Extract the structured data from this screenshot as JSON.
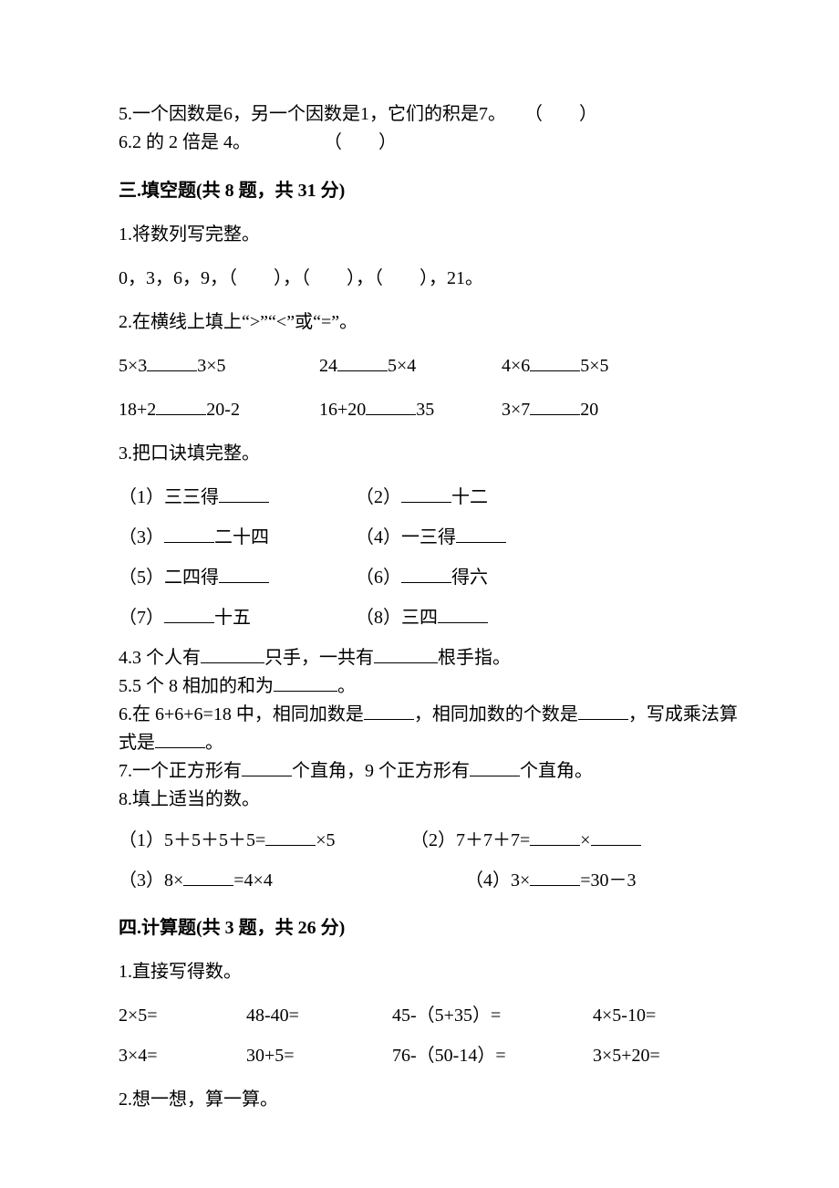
{
  "top": {
    "l5": "5.一个因数是6，另一个因数是1，它们的积是7。　　（　　）",
    "l6": "6.2 的 2 倍是 4。　　　　　（　　）"
  },
  "s3": {
    "title": "三.填空题(共 8 题，共 31 分)",
    "q1_intro": "1.将数列写完整。",
    "q1_line": "0，3，6，9，（　　），（　　），（　　），21。",
    "q2_intro": "2.在横线上填上“>”“<”或“=”。",
    "q2_r1": {
      "a_pre": "5×3",
      "a_post": "3×5",
      "b_pre": "24",
      "b_post": "5×4",
      "c_pre": "4×6",
      "c_post": "5×5"
    },
    "q2_r2": {
      "a_pre": "18+2",
      "a_post": "20-2",
      "b_pre": "16+20",
      "b_post": "35",
      "c_pre": "3×7",
      "c_post": "20"
    },
    "q3_intro": "3.把口诀填完整。",
    "q3_pairs": [
      {
        "l_pre": "（1）三三得",
        "l_post": "",
        "r_pre": "（2）",
        "r_post": "十二"
      },
      {
        "l_pre": "（3）",
        "l_post": "二十四",
        "r_pre": "（4）一三得",
        "r_post": ""
      },
      {
        "l_pre": "（5）二四得",
        "l_post": "",
        "r_pre": "（6）",
        "r_post": "得六"
      },
      {
        "l_pre": "（7）",
        "l_post": "十五",
        "r_pre": "（8）三四",
        "r_post": ""
      }
    ],
    "q4_pre1": "4.3 个人有",
    "q4_mid": "只手，一共有",
    "q4_post": "根手指。",
    "q5_pre": "5.5 个 8 相加的和为",
    "q5_post": "。",
    "q6_pre": "6.在 6+6+6=18 中，相同加数是",
    "q6_mid1": "，相同加数的个数是",
    "q6_mid2": "，写成乘法算",
    "q6_line2_pre": "式是",
    "q6_line2_post": "。",
    "q7_pre": "7.一个正方形有",
    "q7_mid": "个直角，9 个正方形有",
    "q7_post": "个直角。",
    "q8_intro": "8.填上适当的数。",
    "q8_1_pre": "（1）5＋5＋5＋5=",
    "q8_1_post": "×5",
    "q8_2_pre": "（2）7＋7＋7=",
    "q8_2_mid": "×",
    "q8_3_pre": "（3）8×",
    "q8_3_post": "=4×4",
    "q8_4_pre": "（4）3×",
    "q8_4_post": "=30－3"
  },
  "s4": {
    "title": "四.计算题(共 3 题，共 26 分)",
    "q1_intro": "1.直接写得数。",
    "q1_rows": [
      [
        "2×5=",
        "48-40=",
        "45-（5+35）=",
        "4×5-10="
      ],
      [
        "3×4=",
        "30+5=",
        "76-（50-14）=",
        "3×5+20="
      ]
    ],
    "q2_intro": "2.想一想，算一算。"
  },
  "style": {
    "blank_short": 55,
    "blank_med": 70,
    "blank_long": 55
  }
}
